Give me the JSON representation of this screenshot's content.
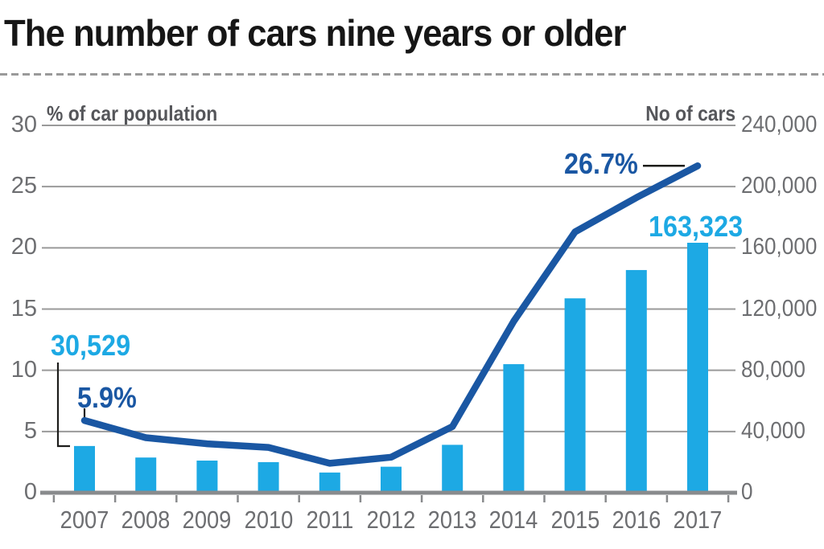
{
  "title": "The number of cars nine years or older",
  "colors": {
    "bar_cyan": "#1da9e4",
    "line_blue": "#1a57a3",
    "grid_gray": "#9a9a9a",
    "axis_gray": "#898b8d",
    "label_gray": "#6d6e71",
    "header_gray": "#55565a",
    "title_black": "#161616",
    "leader_black": "#1d1d1b"
  },
  "chart_data": {
    "type": "combo bar+line, dual axis",
    "categories": [
      "2007",
      "2008",
      "2009",
      "2010",
      "2011",
      "2012",
      "2013",
      "2014",
      "2015",
      "2016",
      "2017"
    ],
    "series": [
      {
        "name": "No of cars",
        "type": "bar",
        "axis": "right",
        "color": "#1da9e4",
        "values": [
          30529,
          23000,
          21000,
          20000,
          13200,
          17000,
          31300,
          84000,
          127000,
          145500,
          163323
        ]
      },
      {
        "name": "% of car population",
        "type": "line",
        "axis": "left",
        "color": "#1a57a3",
        "values": [
          5.9,
          4.5,
          4.0,
          3.7,
          2.4,
          2.9,
          5.4,
          14.0,
          21.3,
          24.1,
          26.7
        ]
      }
    ],
    "left_axis": {
      "label": "% of car population",
      "ticks": [
        "0",
        "5",
        "10",
        "15",
        "20",
        "25",
        "30"
      ],
      "min": 0,
      "max": 30
    },
    "right_axis": {
      "label": "No of cars",
      "ticks": [
        "0",
        "40,000",
        "80,000",
        "120,000",
        "160,000",
        "200,000",
        "240,000"
      ],
      "min": 0,
      "max": 240000
    },
    "grid": true,
    "legend": "none",
    "annotations": [
      {
        "text": "30,529",
        "year": "2007",
        "series": "No of cars",
        "color": "#1da9e4"
      },
      {
        "text": "5.9%",
        "year": "2007",
        "series": "% of car population",
        "color": "#1a57a3"
      },
      {
        "text": "26.7%",
        "year": "2017",
        "series": "% of car population",
        "color": "#1a57a3"
      },
      {
        "text": "163,323",
        "year": "2017",
        "series": "No of cars",
        "color": "#1da9e4"
      }
    ]
  }
}
